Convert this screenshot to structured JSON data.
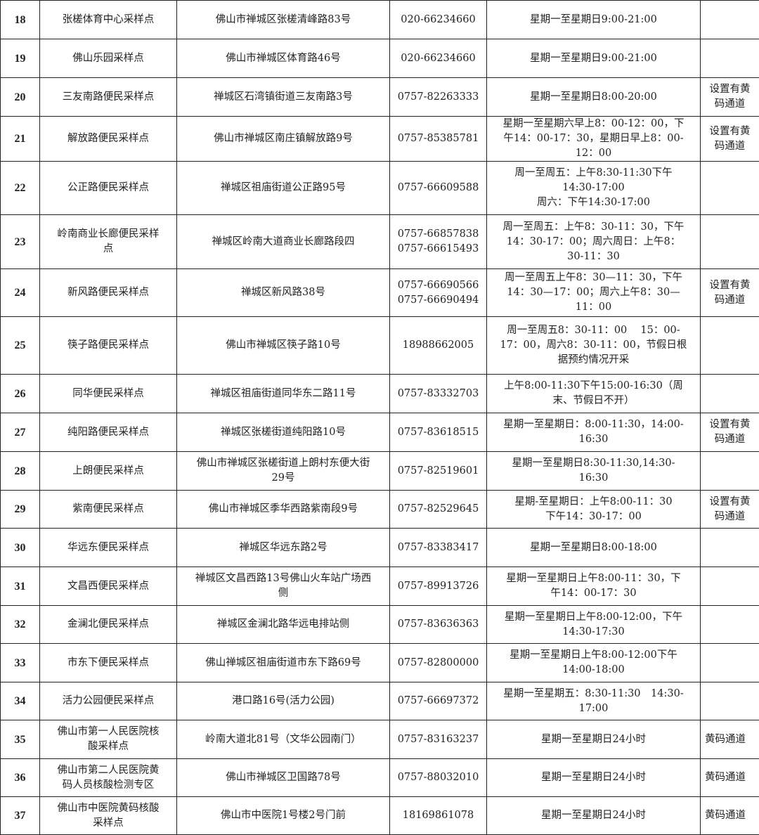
{
  "rows": [
    {
      "no": "18",
      "name": "张槎体育中心采样点",
      "address": "佛山市禅城区张槎清峰路83号",
      "phone": "020-66234660",
      "hours": "星期一至星期日9:00-21:00",
      "note": ""
    },
    {
      "no": "19",
      "name": "佛山乐园采样点",
      "address": "佛山市禅城区体育路46号",
      "phone": "020-66234660",
      "hours": "星期一至星期日9:00-21:00",
      "note": ""
    },
    {
      "no": "20",
      "name": "三友南路便民采样点",
      "address": "禅城区石湾镇街道三友南路3号",
      "phone": "0757-82263333",
      "hours": "星期一至星期日8:00-20:00",
      "note": "设置有黄\n码通道"
    },
    {
      "no": "21",
      "name": "解放路便民采样点",
      "address": "佛山市禅城区南庄镇解放路9号\n ",
      "phone": "0757-85385781",
      "hours": "星期一至星期六早上8：00-12：00，下\n午14：00-17：30，星期日早上8：00-\n12：00",
      "note": "设置有黄\n码通道"
    },
    {
      "no": "22",
      "name": "公正路便民采样点",
      "address": "禅城区祖庙街道公正路95号",
      "phone": "0757-66609588",
      "hours": "周一至周五：上午8:30-11:30下午\n14:30-17:00\n周六：下午14:30-17:00",
      "note": ""
    },
    {
      "no": "23",
      "name": "岭南商业长廊便民采样\n点",
      "address": "禅城区岭南大道商业长廊路段四",
      "phone": "0757-66857838\n0757-66615493",
      "hours": "周一至周五：上午8：30-11：30，下午\n14：30-17：00；周六周日：上午8：\n30-11：30",
      "note": ""
    },
    {
      "no": "24",
      "name": "新风路便民采样点",
      "address": "禅城区新风路38号",
      "phone": "0757-66690566\n0757-66690494",
      "hours": "周一至周五上午8：30—11：30，下午\n14：30—17：00；周六上午8：30—\n11：00",
      "note": "设置有黄\n码通道"
    },
    {
      "no": "25",
      "name": "筷子路便民采样点",
      "address": "佛山市禅城区筷子路10号",
      "phone": "18988662005",
      "hours": "周一至周五8：30-11：00　 15：00-\n17：00，周六8：30-11：00，节假日根\n据预约情况开采",
      "note": ""
    },
    {
      "no": "26",
      "name": "同华便民采样点",
      "address": "禅城区祖庙街道同华东二路11号",
      "phone": "0757-83332703",
      "hours": "上午8:00-11:30下午15:00-16:30（周\n末、节假日不开）",
      "note": ""
    },
    {
      "no": "27",
      "name": "纯阳路便民采样点",
      "address": "禅城区张槎街道纯阳路10号",
      "phone": "0757-83618515",
      "hours": "星期一至星期日：8:00-11:30，14:00-\n16:30",
      "note": "设置有黄\n码通道"
    },
    {
      "no": "28",
      "name": "上朗便民采样点",
      "address": "佛山市禅城区张槎街道上朗村东便大街\n29号",
      "phone": "0757-82519601",
      "hours": "星期一至星期日8:30-11:30,14:30-\n16:30",
      "note": ""
    },
    {
      "no": "29",
      "name": "紫南便民采样点",
      "address": "佛山市禅城区季华西路紫南段9号",
      "phone": "0757-82529645",
      "hours": "星期-至星期日：上午8:00-11：30\n下午14：30-17：00",
      "note": "设置有黄\n码通道"
    },
    {
      "no": "30",
      "name": "华远东便民采样点",
      "address": "禅城区华远东路2号",
      "phone": "0757-83383417",
      "hours": "星期一至星期日8:00-18:00",
      "note": ""
    },
    {
      "no": "31",
      "name": "文昌西便民采样点",
      "address": "禅城区文昌西路13号佛山火车站广场西\n侧",
      "phone": "0757-89913726",
      "hours": "星期一至星期日上午8:00-11：30，下\n午14：00-17：30",
      "note": ""
    },
    {
      "no": "32",
      "name": "金澜北便民采样点",
      "address": "禅城区金澜北路华远电排站侧",
      "phone": "0757-83636363",
      "hours": "星期一至星期日上午8:00-12:00，下午\n14:30-17:30",
      "note": ""
    },
    {
      "no": "33",
      "name": "市东下便民采样点",
      "address": "佛山禅城区祖庙街道市东下路69号",
      "phone": "0757-82800000",
      "hours": "星期一至星期日上午8:00-12:00下午\n14:00-18:00",
      "note": ""
    },
    {
      "no": "34",
      "name": "活力公园便民采样点",
      "address": "港口路16号(活力公园)",
      "phone": "0757-66697372",
      "hours": "星期一至星期五：8:30-11:30　14:30-\n17:00",
      "note": ""
    },
    {
      "no": "35",
      "name": "佛山市第一人民医院核\n酸采样点",
      "address": "岭南大道北81号（文华公园南门）",
      "phone": "0757-83163237",
      "hours": "星期一至星期日24小时",
      "note": "黄码通道"
    },
    {
      "no": "36",
      "name": "佛山市第二人民医院黄\n码人员核酸检测专区",
      "address": "佛山市禅城区卫国路78号",
      "phone": "0757-88032010",
      "hours": "星期一至星期日24小时",
      "note": "黄码通道"
    },
    {
      "no": "37",
      "name": "佛山市中医院黄码核酸\n采样点",
      "address": "佛山市中医院1号楼2号门前",
      "phone": "18169861078",
      "hours": "星期一至星期日24小时",
      "note": "黄码通道"
    }
  ]
}
